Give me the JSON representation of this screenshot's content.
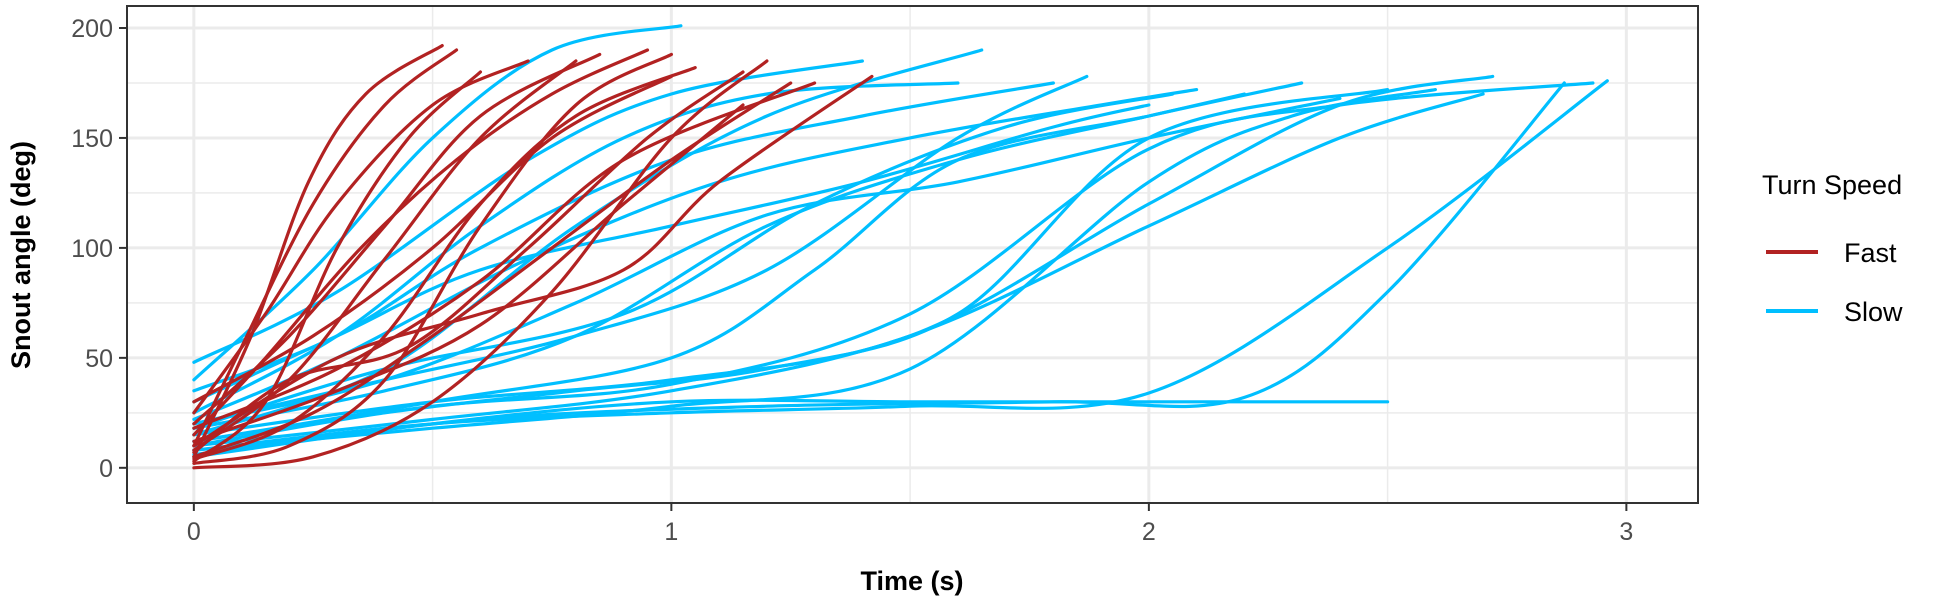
{
  "chart_data": {
    "type": "line",
    "title": "",
    "xlabel": "Time (s)",
    "ylabel": "Snout angle (deg)",
    "xlim": [
      -0.14,
      3.15
    ],
    "ylim": [
      -16,
      210
    ],
    "x_ticks": [
      0,
      1,
      2,
      3
    ],
    "x_tick_labels": [
      "0",
      "1",
      "2",
      "3"
    ],
    "y_ticks": [
      0,
      50,
      100,
      150,
      200
    ],
    "y_tick_labels": [
      "0",
      "50",
      "100",
      "150",
      "200"
    ],
    "grid": true,
    "legend": {
      "title": "Turn Speed",
      "position": "right",
      "entries": [
        {
          "label": "Fast",
          "color": "#B22222"
        },
        {
          "label": "Slow",
          "color": "#00BFFF"
        }
      ]
    },
    "colors": {
      "Fast": "#B22222",
      "Slow": "#00BFFF"
    },
    "series": [
      {
        "group": "Slow",
        "x": [
          0,
          0.5,
          1.0,
          1.5,
          2.0,
          2.5,
          2.96
        ],
        "y": [
          8,
          20,
          25,
          28,
          34,
          100,
          176
        ]
      },
      {
        "group": "Slow",
        "x": [
          0,
          0.6,
          1.2,
          1.8,
          2.2,
          2.5,
          2.87
        ],
        "y": [
          6,
          22,
          28,
          30,
          32,
          80,
          175
        ]
      },
      {
        "group": "Slow",
        "x": [
          0,
          0.5,
          1.0,
          1.5,
          2.0,
          2.4,
          2.93
        ],
        "y": [
          12,
          28,
          38,
          70,
          145,
          165,
          175
        ]
      },
      {
        "group": "Slow",
        "x": [
          0,
          0.5,
          1.0,
          1.5,
          2.0,
          2.4,
          2.72
        ],
        "y": [
          15,
          30,
          40,
          60,
          120,
          165,
          178
        ]
      },
      {
        "group": "Slow",
        "x": [
          0,
          0.4,
          0.8,
          1.2,
          1.6,
          2.0,
          2.32
        ],
        "y": [
          18,
          35,
          60,
          110,
          140,
          160,
          175
        ]
      },
      {
        "group": "Slow",
        "x": [
          0,
          0.4,
          0.8,
          1.2,
          1.6,
          2.0,
          2.5
        ],
        "y": [
          10,
          25,
          35,
          45,
          70,
          150,
          172
        ]
      },
      {
        "group": "Slow",
        "x": [
          0,
          0.3,
          0.6,
          1.0,
          1.4,
          1.8,
          2.0
        ],
        "y": [
          30,
          60,
          90,
          110,
          130,
          155,
          165
        ]
      },
      {
        "group": "Slow",
        "x": [
          0,
          0.4,
          0.8,
          1.2,
          1.6,
          1.87
        ],
        "y": [
          20,
          40,
          60,
          90,
          150,
          178
        ]
      },
      {
        "group": "Slow",
        "x": [
          0,
          0.3,
          0.6,
          0.9,
          1.2,
          1.6
        ],
        "y": [
          25,
          60,
          110,
          150,
          170,
          175
        ]
      },
      {
        "group": "Slow",
        "x": [
          0,
          0.4,
          0.8,
          1.2,
          1.65
        ],
        "y": [
          15,
          45,
          110,
          160,
          190
        ]
      },
      {
        "group": "Slow",
        "x": [
          0,
          0.25,
          0.5,
          0.75,
          1.02
        ],
        "y": [
          40,
          90,
          150,
          190,
          201
        ]
      },
      {
        "group": "Slow",
        "x": [
          0,
          0.5,
          1.0,
          1.5,
          2.0,
          2.5
        ],
        "y": [
          5,
          20,
          30,
          30,
          30,
          30
        ]
      },
      {
        "group": "Slow",
        "x": [
          0,
          0.5,
          1.0,
          1.5,
          2.0,
          2.4,
          2.7
        ],
        "y": [
          10,
          22,
          35,
          60,
          110,
          150,
          170
        ]
      },
      {
        "group": "Slow",
        "x": [
          0,
          0.4,
          0.8,
          1.2,
          1.6,
          2.0,
          2.4
        ],
        "y": [
          20,
          40,
          75,
          115,
          130,
          150,
          168
        ]
      },
      {
        "group": "Slow",
        "x": [
          0,
          0.5,
          1.0,
          1.3,
          1.6,
          2.0,
          2.2
        ],
        "y": [
          12,
          30,
          50,
          90,
          140,
          160,
          170
        ]
      },
      {
        "group": "Slow",
        "x": [
          0,
          0.3,
          0.7,
          1.1,
          1.5,
          1.9,
          2.1
        ],
        "y": [
          22,
          50,
          95,
          130,
          150,
          165,
          172
        ]
      },
      {
        "group": "Slow",
        "x": [
          0,
          0.5,
          1.0,
          1.5,
          2.0,
          2.3,
          2.6
        ],
        "y": [
          8,
          18,
          28,
          45,
          130,
          160,
          172
        ]
      },
      {
        "group": "Slow",
        "x": [
          0,
          0.3,
          0.6,
          1.0,
          1.4,
          1.8
        ],
        "y": [
          35,
          60,
          100,
          140,
          160,
          175
        ]
      },
      {
        "group": "Slow",
        "x": [
          0,
          0.4,
          0.9,
          1.3,
          1.7,
          2.05
        ],
        "y": [
          18,
          45,
          70,
          120,
          155,
          170
        ]
      },
      {
        "group": "Slow",
        "x": [
          0,
          0.3,
          0.7,
          1.0,
          1.4
        ],
        "y": [
          48,
          80,
          140,
          170,
          185
        ]
      },
      {
        "group": "Fast",
        "x": [
          0,
          0.12,
          0.24,
          0.36,
          0.52
        ],
        "y": [
          5,
          60,
          130,
          170,
          192
        ]
      },
      {
        "group": "Fast",
        "x": [
          0,
          0.15,
          0.3,
          0.45,
          0.6
        ],
        "y": [
          3,
          30,
          100,
          150,
          180
        ]
      },
      {
        "group": "Fast",
        "x": [
          0,
          0.2,
          0.4,
          0.6,
          0.8
        ],
        "y": [
          8,
          40,
          95,
          150,
          185
        ]
      },
      {
        "group": "Fast",
        "x": [
          0,
          0.2,
          0.4,
          0.6,
          0.8,
          1.0
        ],
        "y": [
          2,
          10,
          40,
          110,
          165,
          188
        ]
      },
      {
        "group": "Fast",
        "x": [
          0,
          0.25,
          0.5,
          0.75,
          1.0,
          1.2
        ],
        "y": [
          0,
          5,
          30,
          80,
          150,
          185
        ]
      },
      {
        "group": "Fast",
        "x": [
          0,
          0.3,
          0.6,
          0.9,
          1.1,
          1.42
        ],
        "y": [
          10,
          50,
          70,
          90,
          130,
          178
        ]
      },
      {
        "group": "Fast",
        "x": [
          0,
          0.15,
          0.35,
          0.55,
          0.75,
          0.95
        ],
        "y": [
          15,
          50,
          100,
          140,
          170,
          190
        ]
      },
      {
        "group": "Fast",
        "x": [
          0,
          0.2,
          0.4,
          0.6,
          0.85
        ],
        "y": [
          20,
          60,
          110,
          160,
          188
        ]
      },
      {
        "group": "Fast",
        "x": [
          0,
          0.25,
          0.5,
          0.75,
          1.0,
          1.25
        ],
        "y": [
          5,
          25,
          60,
          100,
          140,
          175
        ]
      },
      {
        "group": "Fast",
        "x": [
          0,
          0.3,
          0.6,
          0.9,
          1.15
        ],
        "y": [
          12,
          35,
          65,
          120,
          165
        ]
      },
      {
        "group": "Fast",
        "x": [
          0,
          0.15,
          0.3,
          0.5,
          0.7
        ],
        "y": [
          25,
          70,
          120,
          165,
          185
        ]
      },
      {
        "group": "Fast",
        "x": [
          0,
          0.2,
          0.45,
          0.7,
          0.95,
          1.15
        ],
        "y": [
          7,
          40,
          55,
          100,
          150,
          180
        ]
      },
      {
        "group": "Fast",
        "x": [
          0,
          0.1,
          0.25,
          0.4,
          0.55
        ],
        "y": [
          10,
          55,
          120,
          165,
          190
        ]
      },
      {
        "group": "Fast",
        "x": [
          0,
          0.25,
          0.5,
          0.75,
          1.0
        ],
        "y": [
          30,
          60,
          100,
          150,
          178
        ]
      },
      {
        "group": "Fast",
        "x": [
          0,
          0.2,
          0.4,
          0.6,
          0.8,
          1.05
        ],
        "y": [
          4,
          20,
          60,
          120,
          160,
          182
        ]
      },
      {
        "group": "Fast",
        "x": [
          0,
          0.3,
          0.6,
          0.9,
          1.3
        ],
        "y": [
          18,
          45,
          85,
          140,
          175
        ]
      }
    ]
  }
}
